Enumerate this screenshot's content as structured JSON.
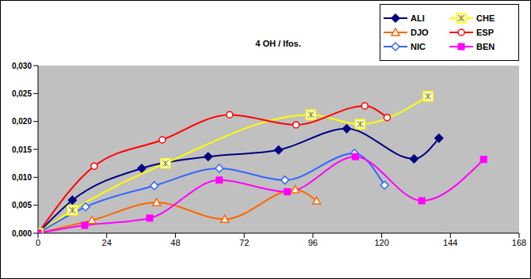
{
  "chart_data": {
    "type": "line",
    "title": "4 OH / Ifos.",
    "xlim": [
      0,
      168
    ],
    "xticks": [
      0,
      24,
      48,
      72,
      96,
      120,
      144,
      168
    ],
    "ylim": [
      0,
      0.03
    ],
    "yticks": [
      {
        "value": 0,
        "label": "0,000"
      },
      {
        "value": 0.005,
        "label": "0,005"
      },
      {
        "value": 0.01,
        "label": "0,010"
      },
      {
        "value": 0.015,
        "label": "0,015"
      },
      {
        "value": 0.02,
        "label": "0,020"
      },
      {
        "value": 0.025,
        "label": "0,025"
      },
      {
        "value": 0.03,
        "label": "0,030"
      }
    ],
    "grid": false,
    "legend": "top-right",
    "series": [
      {
        "name": "ALI",
        "color": "#000080",
        "marker": "diamond",
        "x": [
          0,
          12,
          36.2,
          59.4,
          84,
          107.8,
          131.3,
          140
        ],
        "values": [
          0,
          0.0059,
          0.0116,
          0.0137,
          0.0149,
          0.0187,
          0.0133,
          0.017
        ]
      },
      {
        "name": "CHE",
        "color": "#ffff00",
        "marker": "star",
        "x": [
          0,
          12,
          44.5,
          95.3,
          112.5,
          136.2
        ],
        "values": [
          0,
          0.0041,
          0.0125,
          0.0212,
          0.0195,
          0.0245
        ]
      },
      {
        "name": "DJO",
        "color": "#ff6600",
        "marker": "triangle_open",
        "x": [
          0,
          18.8,
          41.4,
          65.2,
          89.8,
          97.3
        ],
        "values": [
          0,
          0.0023,
          0.0055,
          0.0025,
          0.0078,
          0.0058
        ]
      },
      {
        "name": "ESP",
        "color": "#ff0000",
        "marker": "circle_open",
        "x": [
          0,
          19.6,
          43.4,
          66.9,
          90.1,
          114.1,
          121.9
        ],
        "values": [
          0,
          0.012,
          0.0167,
          0.0212,
          0.0194,
          0.0228,
          0.0207
        ]
      },
      {
        "name": "NIC",
        "color": "#3366ff",
        "marker": "diamond_open",
        "x": [
          0,
          16.6,
          40.6,
          63.3,
          86.2,
          110.5,
          121
        ],
        "values": [
          0,
          0.0047,
          0.0085,
          0.0116,
          0.0095,
          0.0143,
          0.0086
        ]
      },
      {
        "name": "BEN",
        "color": "#ff00ff",
        "marker": "square",
        "x": [
          0,
          16.3,
          39,
          63.3,
          87,
          110.8,
          134,
          155.6
        ],
        "values": [
          0,
          0.0014,
          0.0027,
          0.0095,
          0.0074,
          0.0137,
          0.0058,
          0.0132
        ]
      }
    ]
  }
}
